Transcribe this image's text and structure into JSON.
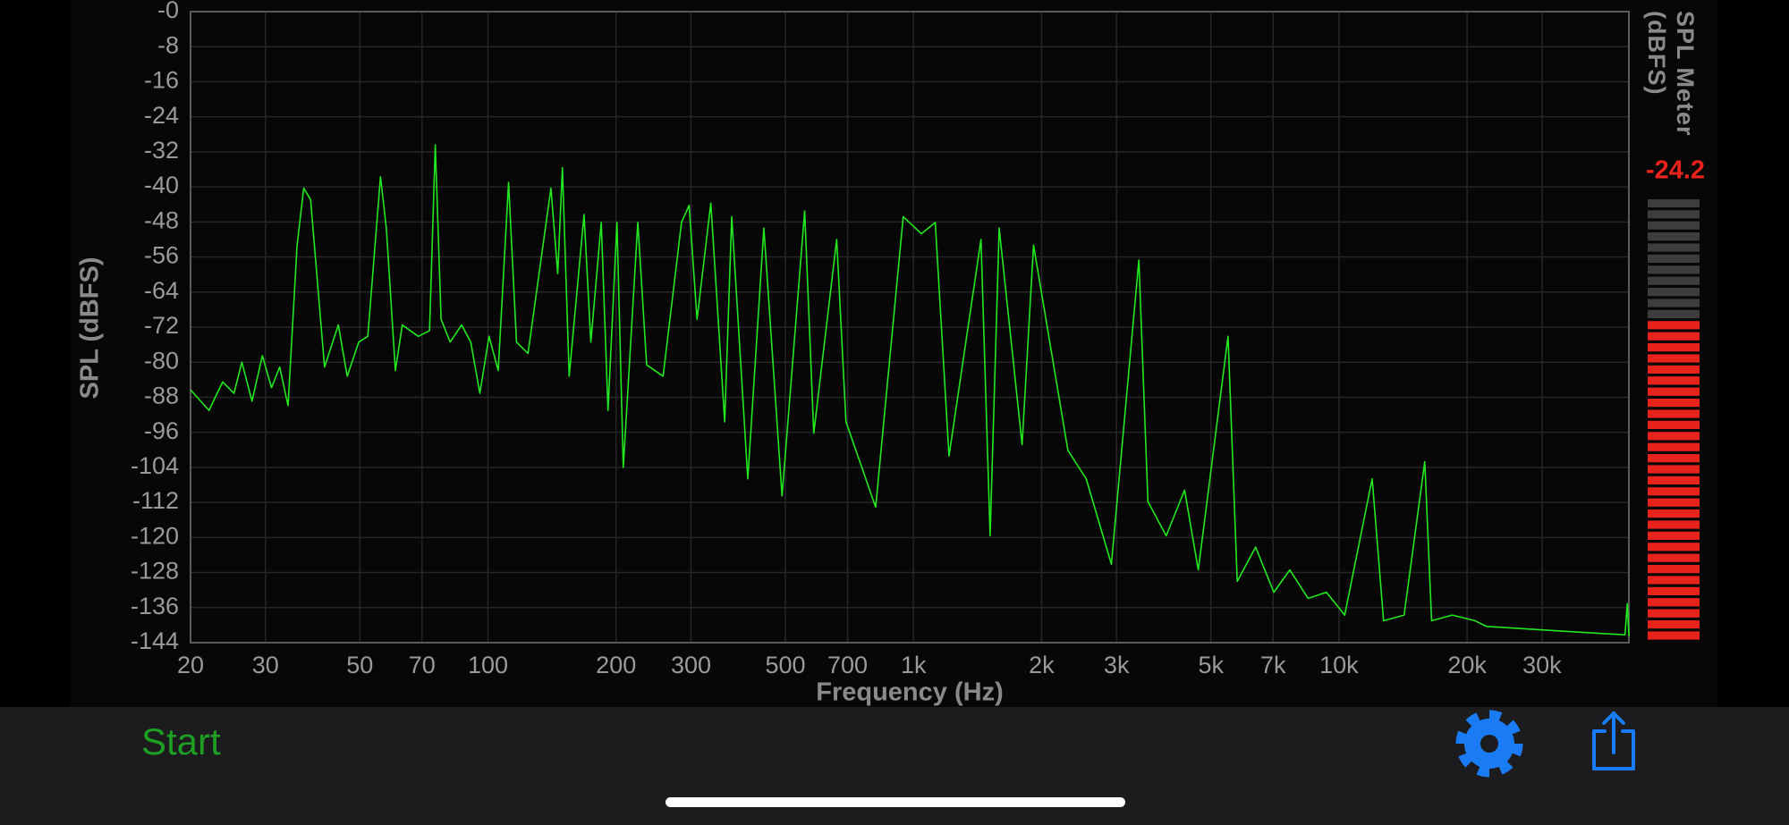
{
  "chart_data": {
    "type": "line",
    "ylabel": "SPL (dBFS)",
    "xlabel": "Frequency (Hz)",
    "color": "#22e81e",
    "xscale": "log",
    "grid": true,
    "xlim": [
      20,
      48000
    ],
    "ylim": [
      -144,
      0
    ],
    "xticks": [
      20,
      30,
      50,
      70,
      100,
      200,
      300,
      500,
      700,
      {
        "value": 1000,
        "label": "1k"
      },
      {
        "value": 2000,
        "label": "2k"
      },
      {
        "value": 3000,
        "label": "3k"
      },
      {
        "value": 5000,
        "label": "5k"
      },
      {
        "value": 7000,
        "label": "7k"
      },
      {
        "value": 10000,
        "label": "10k"
      },
      {
        "value": 20000,
        "label": "20k"
      },
      {
        "value": 30000,
        "label": "30k"
      }
    ],
    "yticks": [
      {
        "value": 0,
        "label": "-0"
      },
      -8,
      -16,
      -24,
      -32,
      -40,
      -48,
      -56,
      -64,
      -72,
      -80,
      -88,
      -96,
      -104,
      -112,
      -120,
      -128,
      -136,
      -144
    ],
    "x": [
      20,
      22.1,
      23.8,
      25.3,
      26.4,
      27.9,
      29.5,
      31,
      32.4,
      33.9,
      35.6,
      36.9,
      38.3,
      41.3,
      44.5,
      46.7,
      49.7,
      52.2,
      55.9,
      57.7,
      60.6,
      62.9,
      68.6,
      72.9,
      75.2,
      77.6,
      81.5,
      86.7,
      91.1,
      95.7,
      100.6,
      105.7,
      111.8,
      116.7,
      124.2,
      140.6,
      145.9,
      149.6,
      155.2,
      168.2,
      174.5,
      184.6,
      191.5,
      201,
      208,
      225,
      236,
      258,
      285,
      297,
      310,
      334,
      360,
      374,
      408,
      445,
      491,
      555,
      583,
      660,
      694,
      815,
      946,
      1044,
      1125,
      1212,
      1441,
      1514,
      1590,
      1800,
      1915,
      2306,
      2546,
      2918,
      3386,
      3556,
      3926,
      4336,
      4670,
      5486,
      5766,
      6368,
      7028,
      7662,
      8460,
      9340,
      10314,
      11966,
      12728,
      14224,
      15906,
      16506,
      18452,
      20880,
      22220,
      30280,
      41260,
      47000,
      47600,
      48000
    ],
    "values": [
      -86.3,
      -91,
      -84.5,
      -87.1,
      -80,
      -88.9,
      -78.5,
      -85.8,
      -81.1,
      -89.9,
      -53.3,
      -40.3,
      -42.9,
      -81.1,
      -71.5,
      -83.2,
      -75.4,
      -74.1,
      -37.7,
      -49.4,
      -81.9,
      -71.5,
      -74.1,
      -72.8,
      -30.4,
      -70.2,
      -75.4,
      -71.5,
      -75.4,
      -87.1,
      -74.1,
      -81.9,
      -39,
      -75.4,
      -78,
      -40.3,
      -59.8,
      -35.6,
      -83.2,
      -46.3,
      -75.4,
      -48.1,
      -91,
      -48.1,
      -104,
      -48.1,
      -80.6,
      -83.2,
      -48.1,
      -44.2,
      -70.2,
      -43.7,
      -93.6,
      -46.8,
      -106.6,
      -49.4,
      -110.5,
      -45.5,
      -96.2,
      -52,
      -93.6,
      -113.1,
      -46.8,
      -50.7,
      -48.1,
      -101.4,
      -52,
      -119.6,
      -49.4,
      -98.8,
      -53.3,
      -100.1,
      -106.6,
      -126.1,
      -56.7,
      -111.8,
      -119.6,
      -109.2,
      -127.4,
      -74.1,
      -130,
      -122.2,
      -132.5,
      -127.4,
      -133.9,
      -132.5,
      -137.7,
      -106.6,
      -139,
      -137.7,
      -102.7,
      -139,
      -137.7,
      -139,
      -140.3,
      -141.1,
      -141.9,
      -142.2,
      -135.1,
      -142.5
    ]
  },
  "meter": {
    "title": "SPL Meter (dBFS)",
    "value": -24.2,
    "lim": [
      -90,
      0
    ],
    "color": "#e8231c"
  },
  "toolbar": {
    "start": "Start"
  }
}
